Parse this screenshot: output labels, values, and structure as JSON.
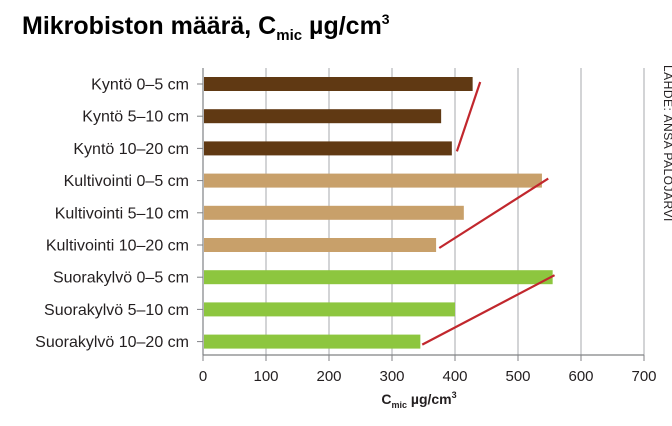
{
  "chart_data": {
    "type": "bar",
    "orientation": "horizontal",
    "title": {
      "main": "Mikrobiston määrä, C",
      "sub": "mic",
      "unit": " µg/cm",
      "sup": "3"
    },
    "xlabel": {
      "main": "C",
      "sub": "mic",
      "unit": " µg/cm",
      "sup": "3"
    },
    "source": "LÄHDE: ANSA PALOJÄRVI",
    "xlim": [
      0,
      700
    ],
    "xticks": [
      0,
      100,
      200,
      300,
      400,
      500,
      600,
      700
    ],
    "grid": true,
    "categories": [
      "Kyntö 0–5 cm",
      "Kyntö 5–10 cm",
      "Kyntö 10–20 cm",
      "Kultivointi 0–5 cm",
      "Kultivointi 5–10 cm",
      "Kultivointi 10–20 cm",
      "Suorakylvö 0–5 cm",
      "Suorakylvö 5–10 cm",
      "Suorakylvö 10–20 cm"
    ],
    "values": [
      428,
      378,
      395,
      538,
      414,
      370,
      555,
      400,
      345
    ],
    "bar_colors": [
      "#603913",
      "#603913",
      "#603913",
      "#c8a06a",
      "#c8a06a",
      "#c8a06a",
      "#8dc63f",
      "#8dc63f",
      "#8dc63f"
    ],
    "trend_color": "#c1272d",
    "trend_lines": [
      {
        "from": [
          440,
          0
        ],
        "to": [
          403,
          2
        ]
      },
      {
        "from": [
          548,
          3
        ],
        "to": [
          375,
          5
        ]
      },
      {
        "from": [
          558,
          6
        ],
        "to": [
          348,
          8
        ]
      }
    ]
  }
}
